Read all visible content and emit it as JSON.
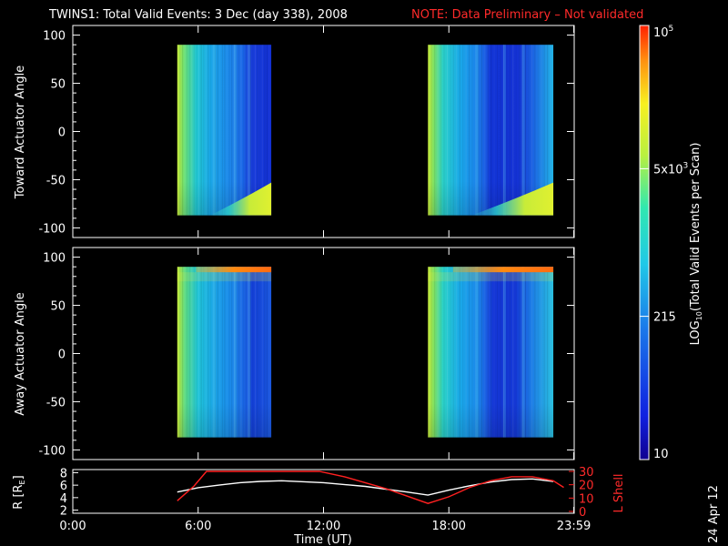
{
  "header": {
    "title": "TWINS1: Total Valid Events:  3 Dec (day 338), 2008",
    "note": "NOTE: Data Preliminary – Not validated"
  },
  "chart_data": [
    {
      "type": "heatmap",
      "panel": "toward",
      "ylabel": "Toward Actuator Angle",
      "xlim_hours": [
        0,
        24
      ],
      "ylim": [
        -110,
        110
      ],
      "yticks": [
        100,
        50,
        0,
        -50,
        -100
      ],
      "scan_blocks_hours": [
        [
          5.0,
          9.5
        ],
        [
          17.0,
          23.0
        ]
      ],
      "angle_range": [
        -87,
        90
      ],
      "colors": {
        "low": "#0a2ad8",
        "mid": "#1a9ce8",
        "high": "#d8f030",
        "max": "#ff2a00"
      }
    },
    {
      "type": "heatmap",
      "panel": "away",
      "ylabel": "Away Actuator Angle",
      "xlim_hours": [
        0,
        24
      ],
      "ylim": [
        -110,
        110
      ],
      "yticks": [
        100,
        50,
        0,
        -50,
        -100
      ],
      "scan_blocks_hours": [
        [
          5.0,
          9.5
        ],
        [
          17.0,
          23.0
        ]
      ],
      "angle_range": [
        -87,
        90
      ]
    },
    {
      "type": "line",
      "panel": "orbit",
      "ylabel_left": "R [R",
      "ylabel_left_sub": "E",
      "ylabel_left_end": "]",
      "ylabel_right": "L Shell",
      "yticks_left": [
        8,
        6,
        4,
        2
      ],
      "yticks_right": [
        30,
        20,
        10,
        0
      ],
      "ylim_left": [
        1.5,
        8.5
      ],
      "ylim_right": [
        0,
        30
      ],
      "xlabel": "Time (UT)",
      "xtick_labels": [
        "0:00",
        "6:00",
        "12:00",
        "18:00",
        "23:59"
      ],
      "xtick_hours": [
        0,
        6,
        12,
        18,
        23.98
      ],
      "series": [
        {
          "color": "#ffffff",
          "x": [
            5.0,
            6.0,
            7.0,
            8.0,
            9.0,
            10.0,
            12.0,
            14.0,
            16.0,
            17.0,
            18.0,
            19.0,
            20.0,
            21.0,
            22.0,
            23.0
          ],
          "y": [
            4.9,
            5.6,
            6.0,
            6.4,
            6.6,
            6.7,
            6.4,
            5.8,
            4.9,
            4.4,
            5.2,
            5.9,
            6.5,
            6.9,
            7.0,
            6.6
          ]
        },
        {
          "color": "#ff2020",
          "x": [
            5.0,
            5.8,
            6.4,
            11.8,
            13.0,
            15.0,
            17.0,
            18.0,
            19.0,
            20.0,
            21.0,
            22.0,
            23.0,
            23.5
          ],
          "y": [
            8,
            19,
            30,
            30,
            26,
            17,
            6,
            11,
            18,
            23,
            26,
            26,
            23,
            18
          ]
        }
      ]
    }
  ],
  "colorbar": {
    "label_pre": "LOG",
    "label_sub": "10",
    "label_post": "(Total Valid Events per Scan)",
    "tick_labels": [
      "10",
      "215",
      "5x10",
      "10"
    ],
    "tick_sups": [
      "",
      "",
      "3",
      "5"
    ],
    "tick_fracs": [
      0.0,
      0.33,
      0.67,
      1.0
    ]
  },
  "footer": {
    "date_stamp": "24 Apr 12"
  }
}
